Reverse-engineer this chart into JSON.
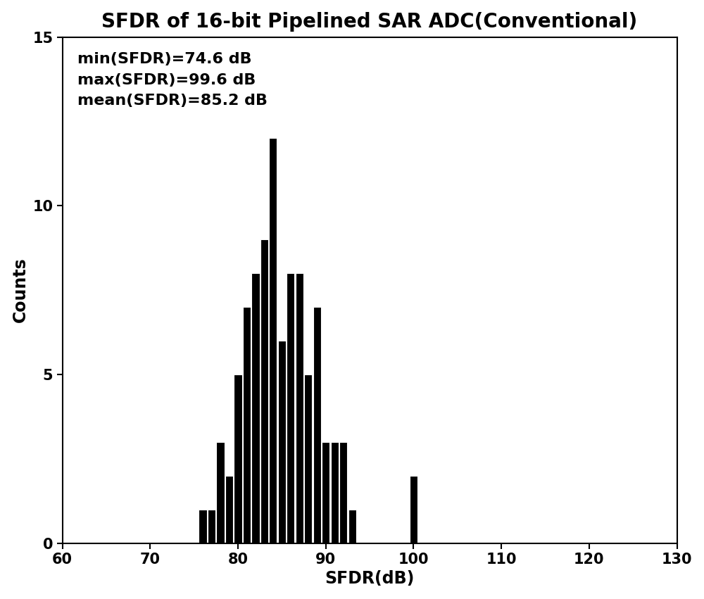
{
  "title": "SFDR of 16-bit Pipelined SAR ADC(Conventional)",
  "xlabel": "SFDR(dB)",
  "ylabel": "Counts",
  "xlim": [
    60,
    130
  ],
  "ylim": [
    0,
    15
  ],
  "xticks": [
    60,
    70,
    80,
    90,
    100,
    110,
    120,
    130
  ],
  "yticks": [
    0,
    5,
    10,
    15
  ],
  "annotation_line1": "min(SFDR)=74.6 dB",
  "annotation_line2": "max(SFDR)=99.6 dB",
  "annotation_line3": "mean(SFDR)=85.2 dB",
  "bar_color": "#000000",
  "background_color": "#ffffff",
  "title_fontsize": 20,
  "label_fontsize": 17,
  "tick_fontsize": 15,
  "annotation_fontsize": 16,
  "bar_centers": [
    76,
    77,
    78,
    79,
    80,
    81,
    82,
    83,
    84,
    85,
    86,
    87,
    88,
    89,
    90,
    91,
    92,
    93,
    100
  ],
  "bar_heights": [
    1,
    1,
    3,
    2,
    5,
    7,
    8,
    9,
    12,
    6,
    8,
    8,
    5,
    7,
    3,
    3,
    3,
    1,
    2
  ]
}
